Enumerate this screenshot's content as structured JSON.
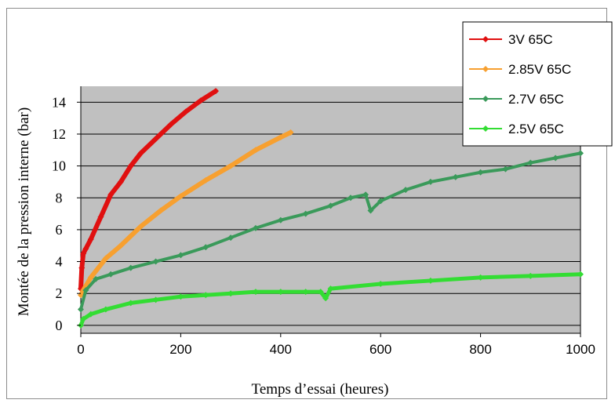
{
  "chart_data": {
    "type": "line",
    "title": "",
    "xlabel": "Temps d’essai (heures)",
    "ylabel": "Montée de la pression interne (bar)",
    "xlim": [
      0,
      1000
    ],
    "ylim": [
      -0.5,
      15
    ],
    "x_ticks": [
      "0",
      "200",
      "400",
      "600",
      "800",
      "1000"
    ],
    "y_ticks": [
      "0",
      "2",
      "4",
      "6",
      "8",
      "10",
      "12",
      "14"
    ],
    "grid": "horizontal",
    "legend_position": "top-right",
    "series": [
      {
        "name": "3V 65C",
        "color": "#e01010",
        "x": [
          0,
          2,
          5,
          10,
          20,
          40,
          60,
          80,
          100,
          120,
          150,
          180,
          210,
          240,
          270
        ],
        "y": [
          2.3,
          3.6,
          4.5,
          4.8,
          5.4,
          6.8,
          8.2,
          9.0,
          10.0,
          10.8,
          11.7,
          12.6,
          13.4,
          14.1,
          14.7
        ]
      },
      {
        "name": "2.85V 65C",
        "color": "#f7a030",
        "x": [
          0,
          5,
          20,
          50,
          80,
          120,
          160,
          200,
          250,
          300,
          350,
          400,
          420
        ],
        "y": [
          1.9,
          2.2,
          3.0,
          4.2,
          5.0,
          6.2,
          7.2,
          8.1,
          9.1,
          10.0,
          11.0,
          11.8,
          12.1
        ]
      },
      {
        "name": "2.7V 65C",
        "color": "#3a9a5a",
        "x": [
          0,
          10,
          30,
          60,
          100,
          150,
          200,
          250,
          300,
          350,
          400,
          450,
          500,
          540,
          570,
          580,
          600,
          650,
          700,
          750,
          800,
          850,
          900,
          950,
          1000
        ],
        "y": [
          1.0,
          2.2,
          2.9,
          3.2,
          3.6,
          4.0,
          4.4,
          4.9,
          5.5,
          6.1,
          6.6,
          7.0,
          7.5,
          8.0,
          8.2,
          7.2,
          7.8,
          8.5,
          9.0,
          9.3,
          9.6,
          9.8,
          10.2,
          10.5,
          10.8
        ]
      },
      {
        "name": "2.5V 65C",
        "color": "#33dd33",
        "x": [
          0,
          5,
          20,
          50,
          100,
          150,
          200,
          250,
          300,
          350,
          400,
          450,
          480,
          490,
          500,
          600,
          700,
          800,
          900,
          1000
        ],
        "y": [
          0,
          0.4,
          0.7,
          1.0,
          1.4,
          1.6,
          1.8,
          1.9,
          2.0,
          2.1,
          2.1,
          2.1,
          2.1,
          1.7,
          2.3,
          2.6,
          2.8,
          3.0,
          3.1,
          3.2
        ]
      }
    ]
  }
}
